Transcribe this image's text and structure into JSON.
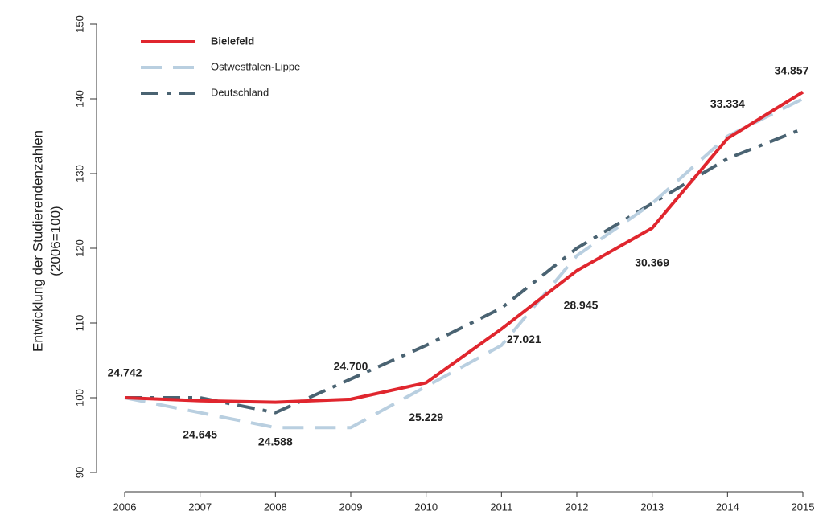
{
  "chart_data": {
    "type": "line",
    "ylabel": [
      "Entwicklung der Studierendenzahlen",
      "(2006=100)"
    ],
    "categories": [
      "2006",
      "2007",
      "2008",
      "2009",
      "2010",
      "2011",
      "2012",
      "2013",
      "2014",
      "2015"
    ],
    "series": [
      {
        "name": "Bielefeld",
        "color": "#e0262e",
        "style": "solid",
        "values": [
          100,
          99.6,
          99.4,
          99.8,
          102.0,
          109.2,
          117.0,
          122.7,
          134.7,
          140.9
        ]
      },
      {
        "name": "Ostwestfalen-Lippe",
        "color": "#b9cfe0",
        "style": "dashed",
        "values": [
          100,
          98,
          96,
          96,
          101.5,
          107,
          119,
          126,
          135,
          140
        ]
      },
      {
        "name": "Deutschland",
        "color": "#4a6372",
        "style": "dashdot",
        "values": [
          100,
          100,
          98,
          102.5,
          107,
          112,
          120,
          126,
          132,
          136
        ]
      }
    ],
    "annotations": [
      "24.742",
      "24.645",
      "24.588",
      "24.700",
      "25.229",
      "27.021",
      "28.945",
      "30.369",
      "33.334",
      "34.857"
    ],
    "ylim": [
      90,
      150
    ],
    "yticks": [
      90,
      100,
      110,
      120,
      130,
      140,
      150
    ],
    "legend": "top-left"
  }
}
